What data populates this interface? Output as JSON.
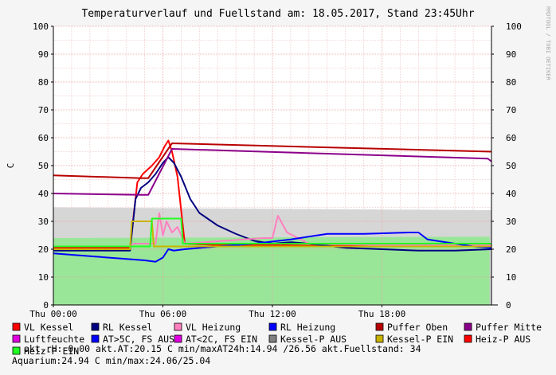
{
  "chart_data": {
    "type": "line",
    "title": "Temperaturverlauf und Fuellstand am: 18.05.2017, Stand 23:45Uhr",
    "ylabel": "C",
    "watermark": "RRDTOOL / TOBI OETIKER",
    "ylim": [
      0,
      100
    ],
    "xlim": [
      0,
      24
    ],
    "yticks": [
      "0",
      "10",
      "20",
      "30",
      "40",
      "50",
      "60",
      "70",
      "80",
      "90",
      "100"
    ],
    "xticks": [
      {
        "x": 0,
        "label": "Thu 00:00"
      },
      {
        "x": 6,
        "label": "Thu 06:00"
      },
      {
        "x": 12,
        "label": "Thu 12:00"
      },
      {
        "x": 18,
        "label": "Thu 18:00"
      }
    ],
    "grid": true,
    "legend_placement": "bottom",
    "series": [
      {
        "name": "VL Kessel",
        "color": "#ff0000",
        "kind": "line",
        "x": [
          0,
          4.2,
          4.6,
          4.9,
          5.4,
          5.8,
          6.1,
          6.3,
          6.5,
          6.8,
          7.2,
          9,
          12,
          15,
          18,
          21,
          24
        ],
        "y": [
          20.5,
          20.5,
          44,
          47,
          50,
          53,
          57,
          59,
          55,
          46,
          22,
          21.5,
          21.5,
          21.2,
          21.2,
          21,
          21
        ]
      },
      {
        "name": "RL Kessel",
        "color": "#000080",
        "kind": "line",
        "x": [
          0,
          4.2,
          4.5,
          4.8,
          5.2,
          5.6,
          6,
          6.3,
          6.6,
          7,
          7.5,
          8,
          9,
          10,
          11,
          12,
          13,
          14,
          16,
          18,
          20,
          22,
          24
        ],
        "y": [
          19.5,
          19.5,
          38,
          42,
          44,
          47,
          51,
          53,
          51,
          46,
          38,
          33,
          28.5,
          25.5,
          23,
          22,
          22.5,
          22,
          20.5,
          20,
          19.5,
          19.5,
          20
        ]
      },
      {
        "name": "VL Heizung",
        "color": "#ff7fbf",
        "kind": "line",
        "x": [
          0,
          4.2,
          4.4,
          5.6,
          5.8,
          6,
          6.2,
          6.5,
          6.8,
          7.2,
          11.5,
          12,
          12.3,
          12.8,
          14,
          18,
          24
        ],
        "y": [
          21,
          21,
          22,
          22,
          33,
          25,
          30,
          26,
          28,
          22,
          24,
          24,
          32,
          26,
          22,
          21.5,
          21.5
        ]
      },
      {
        "name": "RL Heizung",
        "color": "#0000ff",
        "kind": "line",
        "x": [
          0,
          2,
          4,
          5,
          5.6,
          6,
          6.3,
          6.6,
          7.2,
          9,
          11,
          13,
          15,
          17,
          19.5,
          20,
          20.5,
          22,
          23,
          24
        ],
        "y": [
          18.5,
          17.5,
          16.5,
          16,
          15.5,
          17,
          20,
          19.5,
          20,
          21,
          22,
          23.5,
          25.5,
          25.5,
          26,
          26,
          23.5,
          22,
          21,
          20.5
        ]
      },
      {
        "name": "Puffer Oben",
        "color": "#b80000",
        "kind": "line",
        "x": [
          0,
          4.8,
          5.2,
          6.5,
          24
        ],
        "y": [
          46.5,
          45.5,
          45.5,
          58,
          55
        ]
      },
      {
        "name": "Puffer Mitte",
        "color": "#8b008b",
        "kind": "line",
        "x": [
          0,
          4.8,
          5.2,
          6.5,
          23.8,
          24
        ],
        "y": [
          40,
          39.5,
          39.5,
          56,
          52.5,
          51.5
        ]
      },
      {
        "name": "Luftfeuchte",
        "color": "#e000e0",
        "kind": "line",
        "x": [],
        "y": []
      },
      {
        "name": "AT>5C, FS AUS",
        "color": "#0000ff",
        "kind": "line",
        "x": [],
        "y": []
      },
      {
        "name": "AT<2C, FS EIN",
        "color": "#e000e0",
        "kind": "line",
        "x": [],
        "y": []
      },
      {
        "name": "Kessel-P AUS",
        "color": "#808080",
        "kind": "area",
        "x": [
          0,
          24
        ],
        "y": [
          35,
          34
        ]
      },
      {
        "name": "Kessel-P EIN",
        "color": "#c8b400",
        "kind": "line",
        "x": [
          0,
          4.2,
          4.3,
          5.4,
          5.5,
          24
        ],
        "y": [
          20,
          20,
          30,
          30,
          21,
          21
        ]
      },
      {
        "name": "Heiz-P AUS",
        "color": "#ff0000",
        "kind": "line",
        "x": [],
        "y": []
      },
      {
        "name": "Heiz-P EIN",
        "color": "#22ff22",
        "kind": "line",
        "x": [
          0,
          5.3,
          5.4,
          7,
          7.1,
          24
        ],
        "y": [
          21,
          21,
          31,
          31,
          22,
          22
        ]
      },
      {
        "name": "Fuellstand",
        "color": "#99e699",
        "kind": "area",
        "x": [
          0,
          23.9
        ],
        "y": [
          24,
          24.5
        ]
      }
    ]
  },
  "status": {
    "line1": "akt.rH: 0.00   akt.AT:20.15 C   min/maxAT24h:14.94 /26.56   akt.Fuellstand:   34",
    "line2": "Aquarium:24.94 C  min/max:24.06/25.04"
  }
}
